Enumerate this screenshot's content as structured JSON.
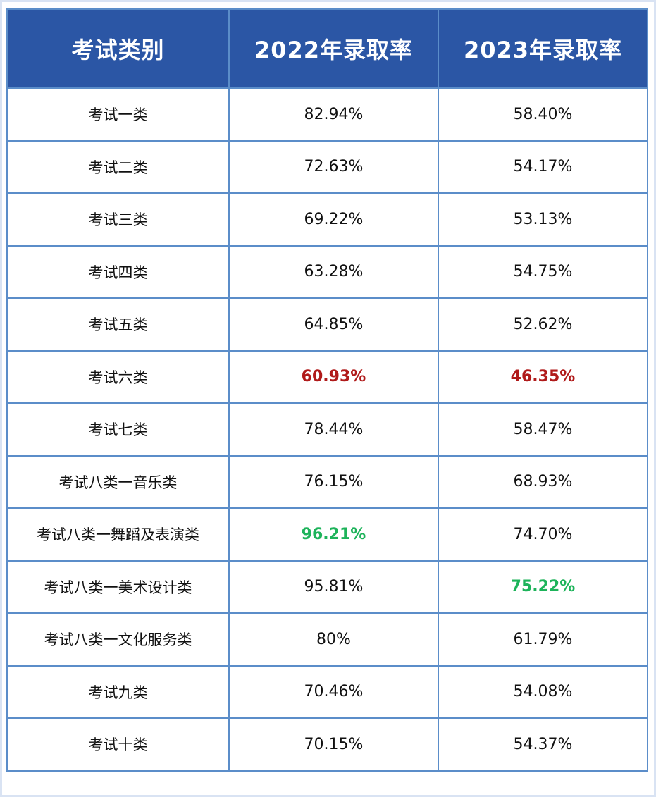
{
  "table": {
    "headers": [
      "考试类别",
      "2022年录取率",
      "2023年录取率"
    ],
    "rows": [
      {
        "category": "考试一类",
        "rate_2022": "82.94%",
        "rate_2023": "58.40%"
      },
      {
        "category": "考试二类",
        "rate_2022": "72.63%",
        "rate_2023": "54.17%"
      },
      {
        "category": "考试三类",
        "rate_2022": "69.22%",
        "rate_2023": "53.13%"
      },
      {
        "category": "考试四类",
        "rate_2022": "63.28%",
        "rate_2023": "54.75%"
      },
      {
        "category": "考试五类",
        "rate_2022": "64.85%",
        "rate_2023": "52.62%"
      },
      {
        "category": "考试六类",
        "rate_2022": "60.93%",
        "rate_2023": "46.35%"
      },
      {
        "category": "考试七类",
        "rate_2022": "78.44%",
        "rate_2023": "58.47%"
      },
      {
        "category": "考试八类一音乐类",
        "rate_2022": "76.15%",
        "rate_2023": "68.93%"
      },
      {
        "category": "考试八类一舞蹈及表演类",
        "rate_2022": "96.21%",
        "rate_2023": "74.70%"
      },
      {
        "category": "考试八类一美术设计类",
        "rate_2022": "95.81%",
        "rate_2023": "75.22%"
      },
      {
        "category": "考试八类一文化服务类",
        "rate_2022": "80%",
        "rate_2023": "61.79%"
      },
      {
        "category": "考试九类",
        "rate_2022": "70.46%",
        "rate_2023": "54.08%"
      },
      {
        "category": "考试十类",
        "rate_2022": "70.15%",
        "rate_2023": "54.37%"
      }
    ]
  },
  "colors": {
    "header_bg": "#2b56a5",
    "border": "#5b8dc9",
    "lowest_highlight": "#b01a1a",
    "highest_highlight": "#1db35a"
  }
}
